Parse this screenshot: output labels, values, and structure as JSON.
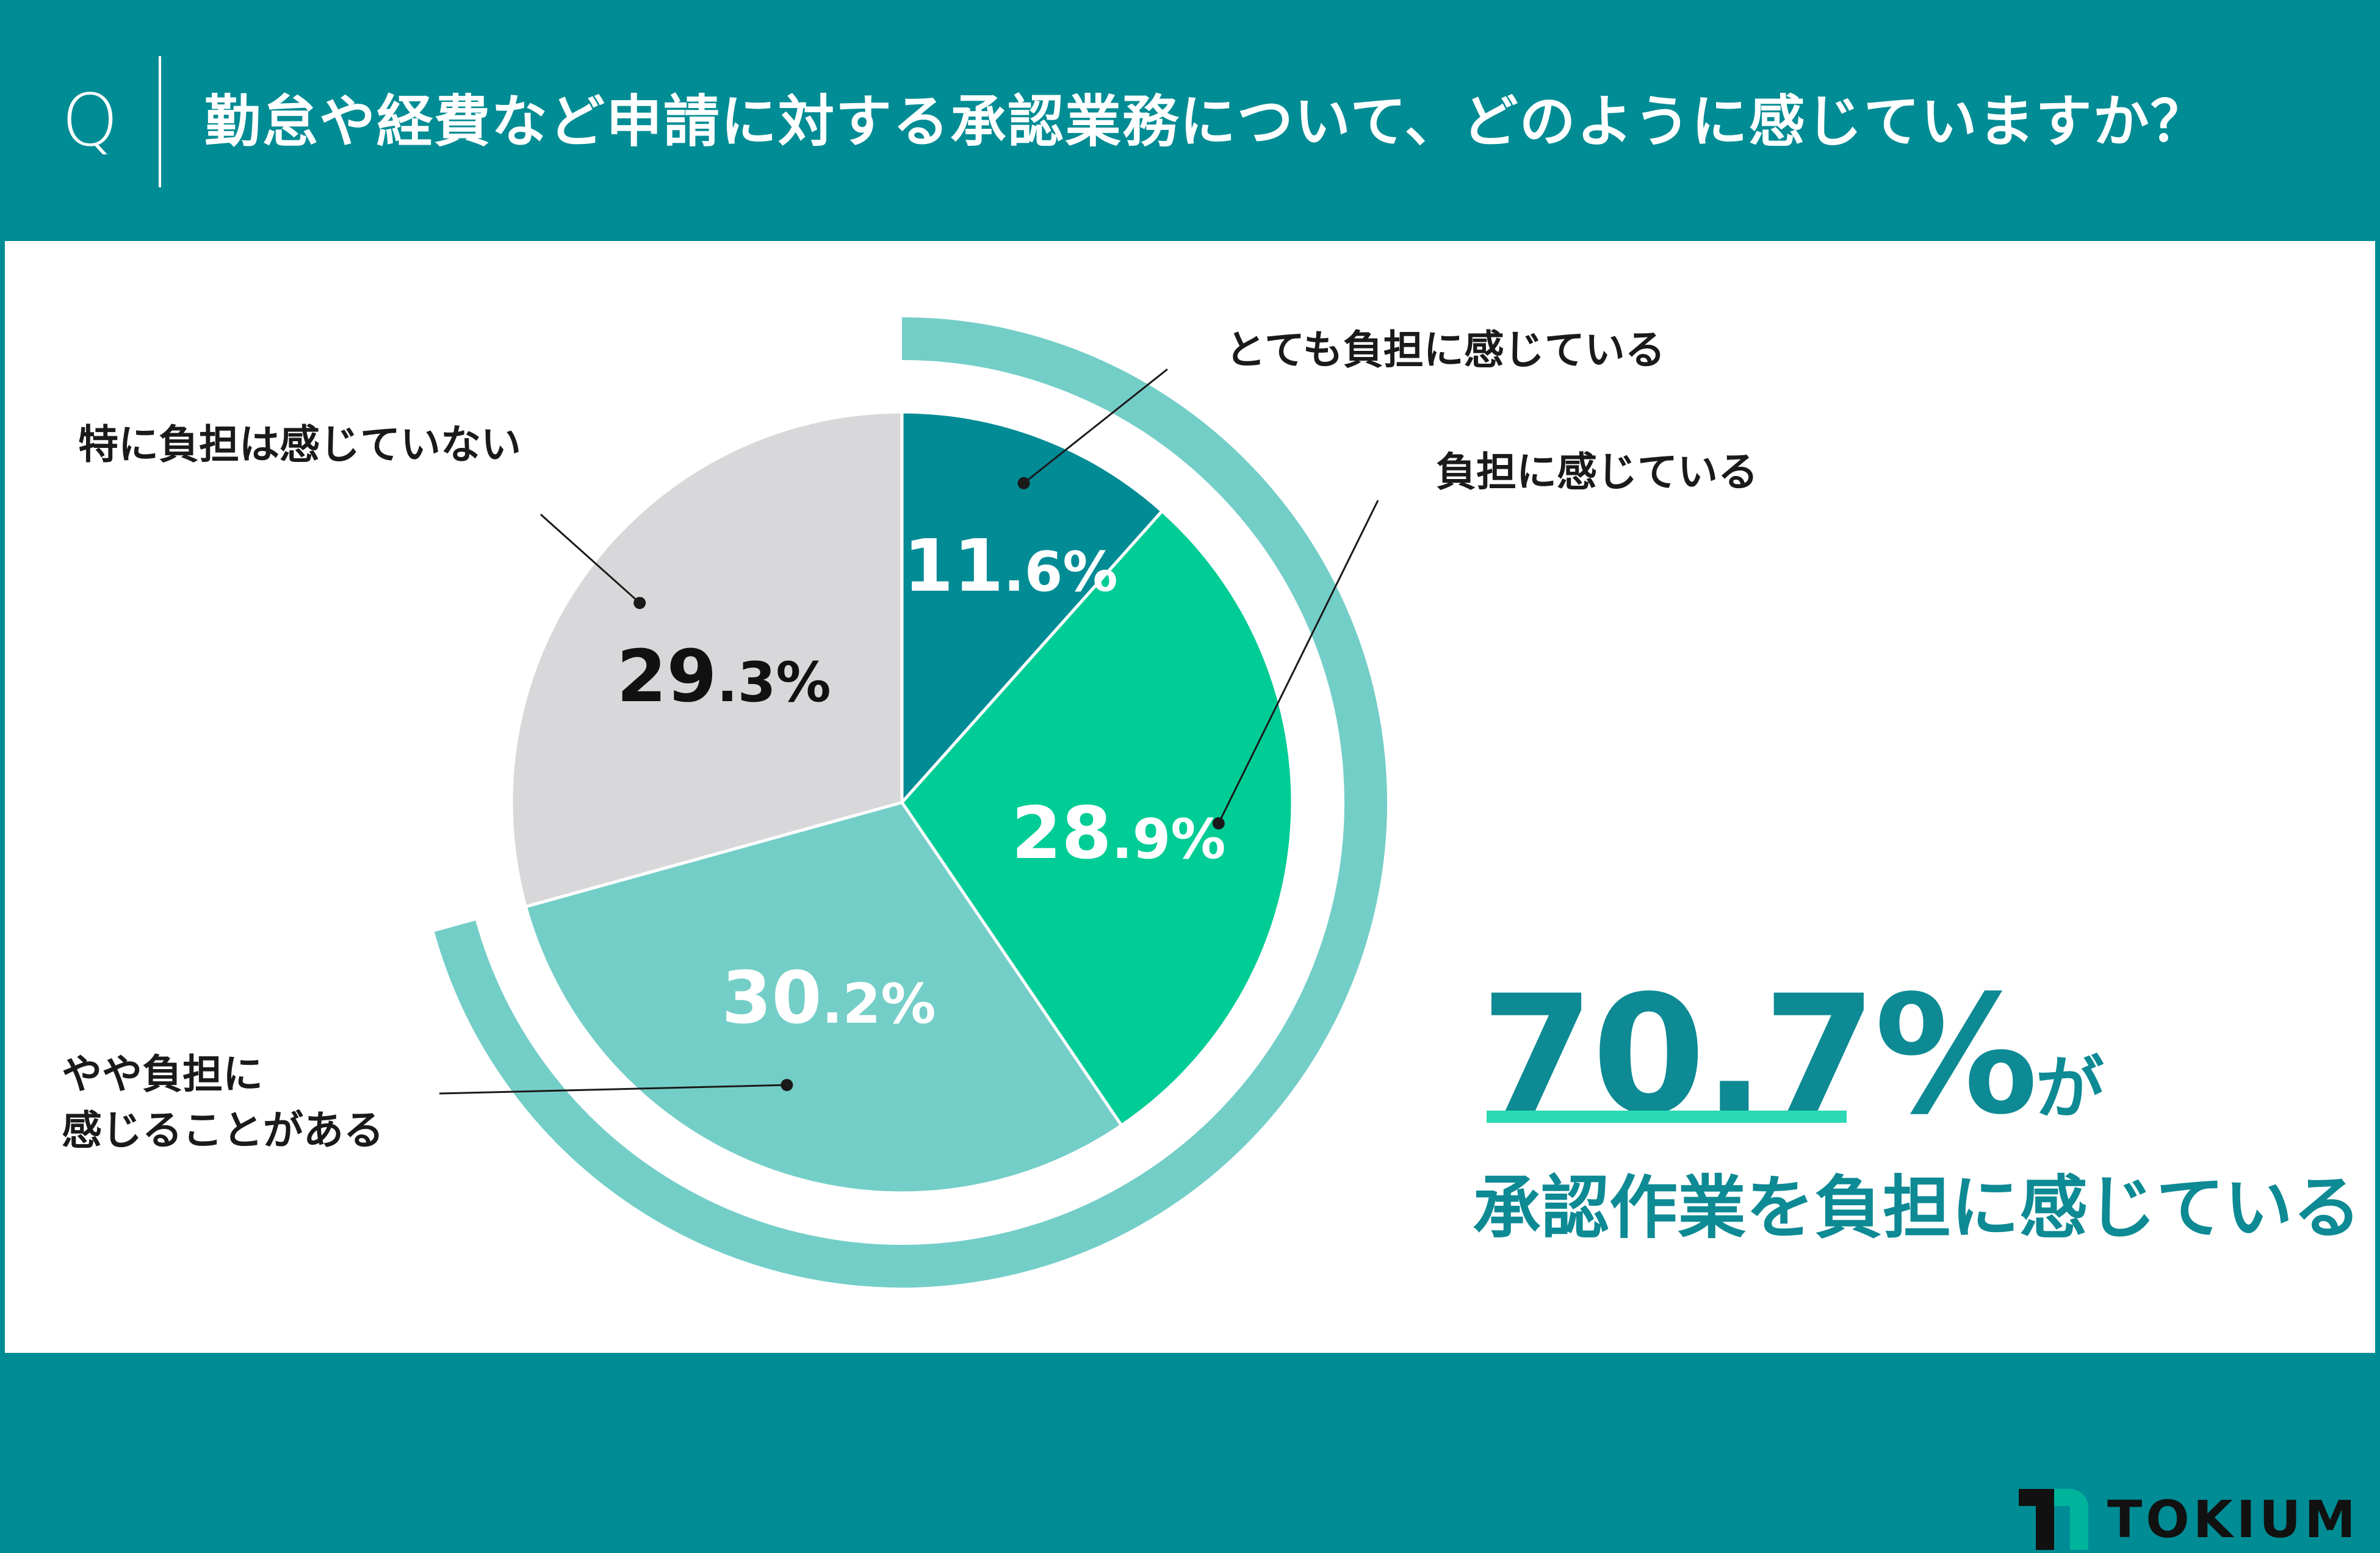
{
  "header": {
    "icon": "Q",
    "question": "勤怠や経費など申請に対する承認業務について、どのように感じていますか？"
  },
  "chart_data": {
    "type": "pie",
    "slices": [
      {
        "label": "とても負担に感じている",
        "value": 11.6,
        "value_int": "11",
        "value_dec": ".6%",
        "color": "#008B95"
      },
      {
        "label": "負担に感じている",
        "value": 28.9,
        "value_int": "28",
        "value_dec": ".9%",
        "color": "#00CC96"
      },
      {
        "label": "やや負担に感じることがある",
        "label_lines": [
          "やや負担に",
          "感じることがある"
        ],
        "value": 30.2,
        "value_int": "30",
        "value_dec": ".2%",
        "color": "#74CEC8"
      },
      {
        "label": "特に負担は感じていない",
        "value": 29.3,
        "value_int": "29",
        "value_dec": ".3%",
        "color": "#D8D8DA"
      }
    ],
    "highlight_arc_color": "#74CEC8",
    "start_angle": "12 o'clock",
    "direction": "clockwise"
  },
  "summary": {
    "value": "70.7%",
    "suffix": "が",
    "caption": "承認作業を負担に感じている",
    "color": "#0D8A94",
    "underline_color": "#2BD9B4"
  },
  "brand": {
    "name": "TOKIUM"
  }
}
